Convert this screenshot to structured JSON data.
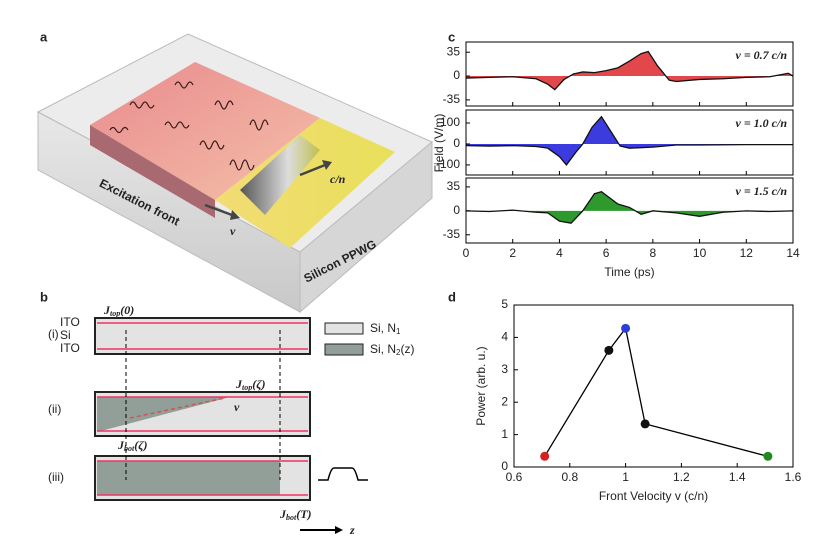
{
  "figure": {
    "panel_labels": [
      "a",
      "b",
      "c",
      "d"
    ]
  },
  "panel_a": {
    "excitation_front": "Excitation front",
    "front_velocity": "v",
    "wave_velocity": "c/n",
    "device": "Silicon PPWG"
  },
  "panel_b": {
    "rows": [
      "(i)",
      "(ii)",
      "(iii)"
    ],
    "layers": [
      "ITO",
      "Si",
      "ITO"
    ],
    "legend": [
      {
        "text": "Si, N",
        "sub": "1",
        "tail": ""
      },
      {
        "text": "Si, N",
        "sub": "2",
        "tail": "(z)"
      }
    ],
    "currents": [
      {
        "main": "J",
        "sub": "top",
        "arg": "(0)"
      },
      {
        "main": "J",
        "sub": "top",
        "arg": "(ζ)"
      },
      {
        "main": "J",
        "sub": "bot",
        "arg": "(ζ)"
      },
      {
        "main": "J",
        "sub": "bot",
        "arg": "(T)"
      }
    ],
    "velocity": "v",
    "axis": "z"
  },
  "chart_data": [
    {
      "type": "line",
      "annotation": "v = 0.7 c/n",
      "color": "#e2474b",
      "x": [
        0,
        1,
        2,
        3,
        3.5,
        3.8,
        4.2,
        4.6,
        5,
        5.5,
        6,
        6.5,
        7,
        7.5,
        7.8,
        8.2,
        8.7,
        9,
        10,
        11,
        12,
        13,
        13.8,
        14
      ],
      "values": [
        -3,
        -2,
        -1,
        -4,
        -12,
        -20,
        -5,
        3,
        6,
        5,
        8,
        12,
        22,
        33,
        36,
        15,
        -6,
        -8,
        -5,
        -4,
        -2,
        -1,
        4,
        0
      ],
      "xlim": [
        0,
        14
      ],
      "xticks": [
        0,
        2,
        4,
        6,
        8,
        10,
        12,
        14
      ],
      "ylim": [
        -44,
        50
      ],
      "yticks": [
        -35,
        0,
        35
      ]
    },
    {
      "type": "line",
      "annotation": "v = 1.0 c/n",
      "color": "#3b3bdf",
      "ylabel": "Field (V/m)",
      "x": [
        0,
        1,
        2,
        3,
        3.5,
        4,
        4.3,
        4.7,
        5,
        5.4,
        5.8,
        6.2,
        6.6,
        7,
        8,
        9,
        10,
        12,
        14
      ],
      "values": [
        -8,
        -10,
        -8,
        -12,
        -20,
        -60,
        -100,
        -40,
        0,
        80,
        130,
        60,
        -10,
        -20,
        -15,
        -5,
        -5,
        -3,
        -3
      ],
      "xlim": [
        0,
        14
      ],
      "xticks": [
        0,
        2,
        4,
        6,
        8,
        10,
        12,
        14
      ],
      "ylim": [
        -148,
        162
      ],
      "yticks": [
        -100,
        0,
        100
      ]
    },
    {
      "type": "line",
      "annotation": "v = 1.5 c/n",
      "color": "#2e9a2e",
      "xlabel": "Time (ps)",
      "x": [
        0,
        1,
        2,
        3,
        3.5,
        4,
        4.5,
        5,
        5.5,
        5.8,
        6.5,
        7,
        7.5,
        8,
        9,
        10,
        11,
        12,
        13,
        14
      ],
      "values": [
        0,
        -1,
        1,
        -2,
        -3,
        -15,
        -18,
        0,
        25,
        28,
        10,
        5,
        -5,
        0,
        -3,
        -8,
        -2,
        0,
        -1,
        0
      ],
      "xlim": [
        0,
        14
      ],
      "xticks": [
        0,
        2,
        4,
        6,
        8,
        10,
        12,
        14
      ],
      "ylim": [
        -47,
        48
      ],
      "yticks": [
        -35,
        0,
        35
      ]
    },
    {
      "type": "scatter",
      "connect": true,
      "line_color": "#000000",
      "xlabel": "Front Velocity v (c/n)",
      "ylabel": "Power (arb. u.)",
      "x": [
        0.71,
        0.94,
        1.0,
        1.07,
        1.51
      ],
      "values": [
        0.33,
        3.6,
        4.28,
        1.33,
        0.33
      ],
      "point_colors": [
        "#d42020",
        "#111111",
        "#2b3fd6",
        "#111111",
        "#1f8a1f"
      ],
      "xlim": [
        0.6,
        1.6
      ],
      "xticks": [
        0.6,
        0.8,
        1,
        1.2,
        1.4,
        1.6
      ],
      "ylim": [
        0,
        5
      ],
      "yticks": [
        0,
        1,
        2,
        3,
        4,
        5
      ]
    }
  ]
}
